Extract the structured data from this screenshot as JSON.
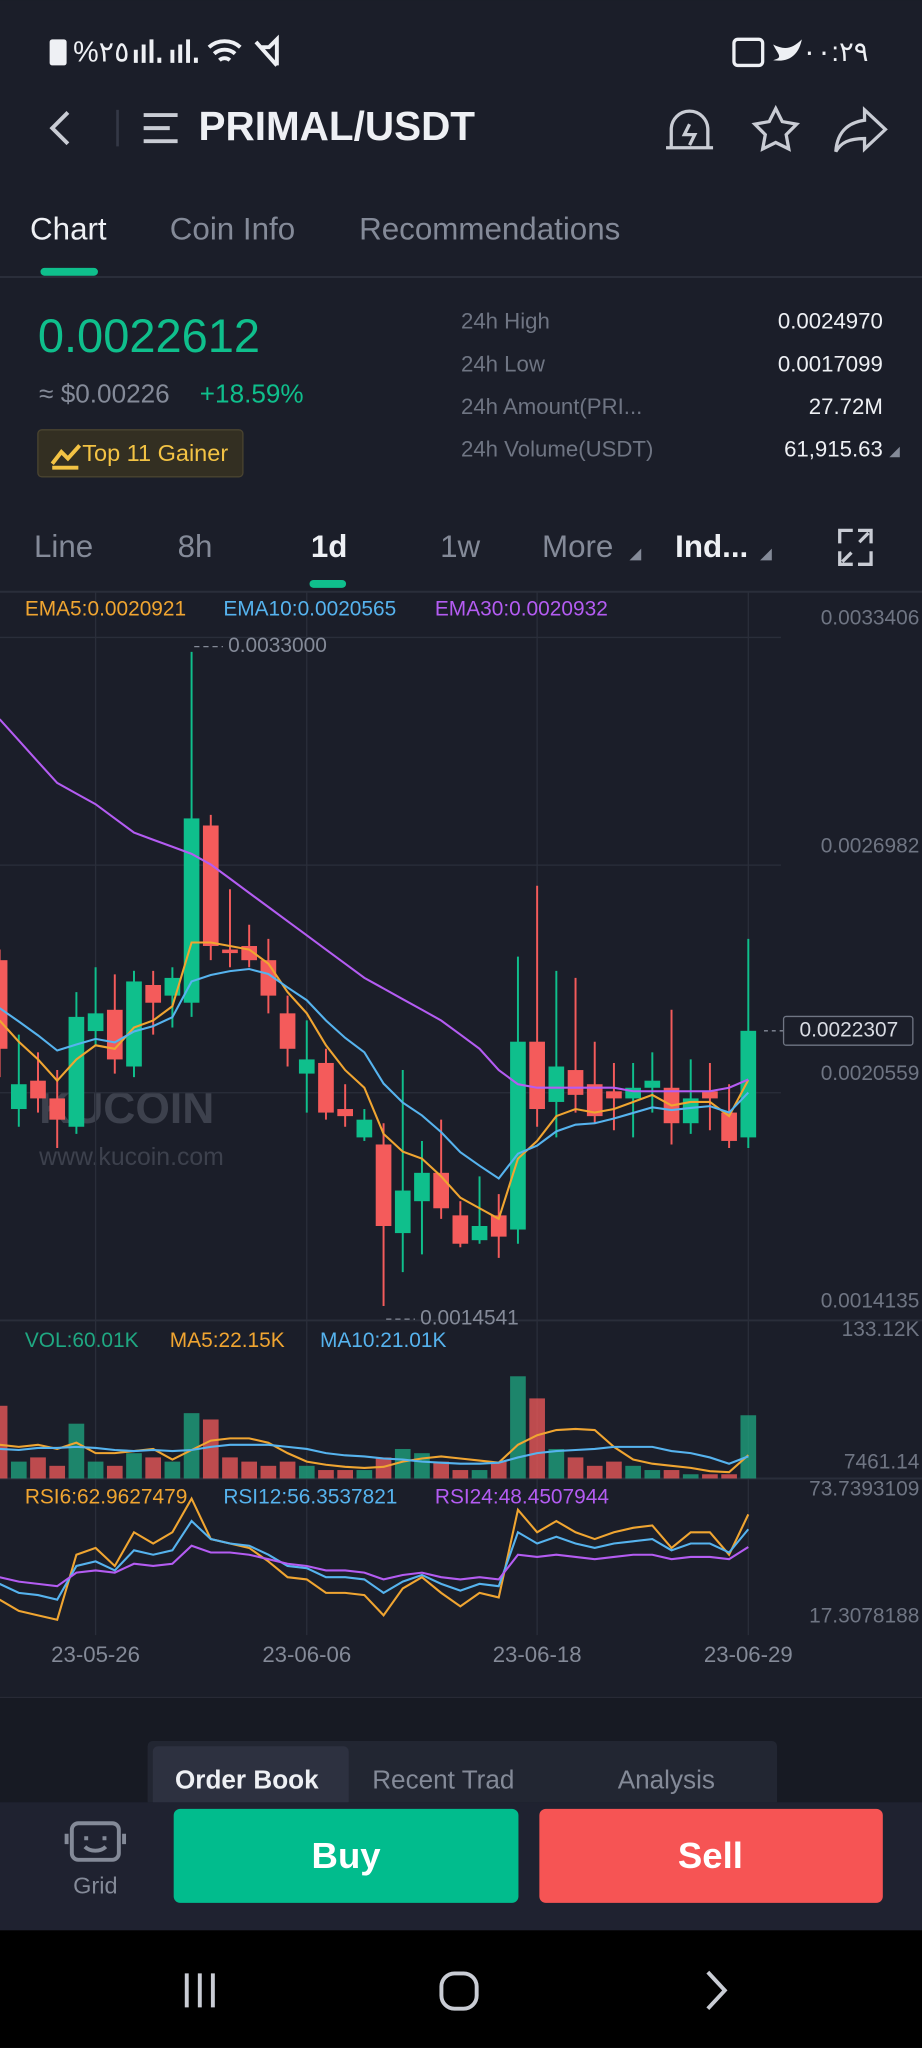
{
  "status_bar": {
    "battery": "%٢٥",
    "time": "٠٠:٢٩"
  },
  "header": {
    "title": "PRIMAL/USDT"
  },
  "tabs": [
    "Chart",
    "Coin Info",
    "Recommendations"
  ],
  "ticker": {
    "last_price": "0.0022612",
    "fiat_price": "≈ $0.00226",
    "change": "+18.59%",
    "badge": "Top 11 Gainer"
  },
  "stats": [
    {
      "label": "24h High",
      "value": "0.0024970"
    },
    {
      "label": "24h Low",
      "value": "0.0017099"
    },
    {
      "label": "24h Amount(PRI...",
      "value": "27.72M"
    },
    {
      "label": "24h Volume(USDT)",
      "value": "61,915.63"
    }
  ],
  "intervals": [
    "Line",
    "8h",
    "1d",
    "1w",
    "More",
    "Ind..."
  ],
  "watermark": {
    "brand": "KUCOIN",
    "url": "www.kucoin.com"
  },
  "chart_data": [
    {
      "type": "candlestick",
      "categories": [
        null,
        null,
        null,
        null,
        null,
        "23-05-26",
        null,
        null,
        null,
        null,
        null,
        null,
        null,
        null,
        null,
        null,
        "23-06-06",
        null,
        null,
        null,
        null,
        null,
        null,
        null,
        null,
        null,
        null,
        null,
        "23-06-18",
        null,
        null,
        null,
        null,
        null,
        null,
        null,
        null,
        null,
        null,
        "23-06-29"
      ],
      "open": [
        0.00243,
        0.00201,
        0.00209,
        0.00204,
        0.00196,
        0.00223,
        0.00229,
        0.00213,
        0.00236,
        0.00233,
        0.00231,
        0.00281,
        0.00246,
        0.00247,
        0.00243,
        0.00228,
        0.00211,
        0.00214,
        0.00201,
        0.00193,
        0.00191,
        0.00166,
        0.00175,
        0.00183,
        0.00171,
        0.00164,
        0.00171,
        0.00167,
        0.0022,
        0.00203,
        0.00212,
        0.00208,
        0.00206,
        0.00204,
        0.00207,
        0.00207,
        0.00197,
        0.00206,
        0.002,
        0.00193
      ],
      "high": [
        0.00246,
        0.00222,
        0.00217,
        0.00212,
        0.00234,
        0.00241,
        0.00239,
        0.0024,
        0.0024,
        0.00241,
        0.0033,
        0.00284,
        0.00263,
        0.00253,
        0.00249,
        0.00233,
        0.00226,
        0.00218,
        0.00208,
        0.00201,
        0.00197,
        0.00212,
        0.00192,
        0.00198,
        0.00175,
        0.00182,
        0.00177,
        0.00244,
        0.00264,
        0.0024,
        0.00238,
        0.0022,
        0.00214,
        0.00214,
        0.00217,
        0.00229,
        0.00215,
        0.00214,
        0.00208,
        0.00249
      ],
      "low": [
        0.0021,
        0.00196,
        0.002,
        0.0019,
        0.00194,
        0.00219,
        0.00211,
        0.0021,
        0.00222,
        0.00224,
        0.00227,
        0.00243,
        0.00241,
        0.00241,
        0.00228,
        0.00213,
        0.002,
        0.00198,
        0.00196,
        0.00192,
        0.0014541,
        0.00155,
        0.0016,
        0.0017,
        0.00162,
        0.00163,
        0.00159,
        0.00163,
        0.00196,
        0.00193,
        0.002,
        0.00197,
        0.00195,
        0.00193,
        0.002,
        0.00191,
        0.00194,
        0.00195,
        0.0019,
        0.0019
      ],
      "close": [
        0.00218,
        0.00208,
        0.00204,
        0.00198,
        0.00227,
        0.00228,
        0.00215,
        0.00237,
        0.00231,
        0.00238,
        0.00283,
        0.00247,
        0.00245,
        0.00243,
        0.00233,
        0.00218,
        0.00215,
        0.002,
        0.00199,
        0.00198,
        0.00168,
        0.00178,
        0.00183,
        0.00173,
        0.00163,
        0.00168,
        0.00165,
        0.0022,
        0.00201,
        0.00213,
        0.00205,
        0.00199,
        0.00204,
        0.00207,
        0.00209,
        0.00197,
        0.00204,
        0.00204,
        0.00192,
        0.0022307
      ],
      "up_color": "#0fbf8c",
      "down_color": "#f45b5b",
      "ylim": [
        0.0014135,
        0.0034696
      ],
      "yticks": [
        0.0033406,
        0.0026982,
        0.0020559,
        0.0014135
      ],
      "grid": true,
      "last_price": 0.0022307,
      "high_mark": {
        "value": 0.0033,
        "label": "0.0033000"
      },
      "low_mark": 0.0014541,
      "series": [
        {
          "name": "EMA5:0.0020921",
          "color": "#f0a531",
          "values": [
            0.00226,
            0.0022,
            0.00215,
            0.00209,
            0.00215,
            0.00219,
            0.00218,
            0.00224,
            0.00226,
            0.0023,
            0.00248,
            0.00248,
            0.00247,
            0.00246,
            0.00242,
            0.00234,
            0.00228,
            0.00219,
            0.00212,
            0.00207,
            0.00194,
            0.00189,
            0.00187,
            0.00182,
            0.00176,
            0.00173,
            0.0017,
            0.00187,
            0.00192,
            0.00199,
            0.00201,
            0.002,
            0.00201,
            0.00203,
            0.00205,
            0.00202,
            0.00203,
            0.00203,
            0.00199,
            0.0020921
          ]
        },
        {
          "name": "EMA10:0.0020565",
          "color": "#56b3ee",
          "values": [
            0.002295,
            0.002257,
            0.002218,
            0.002175,
            0.002192,
            0.002208,
            0.002198,
            0.002229,
            0.002244,
            0.002269,
            0.00237,
            0.002388,
            0.002399,
            0.002405,
            0.002391,
            0.002353,
            0.002317,
            0.00226,
            0.002211,
            0.00217,
            0.002082,
            0.002028,
            0.001992,
            0.001945,
            0.001888,
            0.00185,
            0.001814,
            0.001884,
            0.001907,
            0.001947,
            0.001966,
            0.00197,
            0.001983,
            0.001999,
            0.002015,
            0.002007,
            0.002013,
            0.002018,
            0.002,
            0.0020565
          ]
        },
        {
          "name": "EMA30:0.0020932",
          "color": "#b45cf2",
          "values": [
            0.00311,
            0.00305,
            0.00299,
            0.00293,
            0.0029,
            0.00287,
            0.00283,
            0.00279,
            0.00277,
            0.00275,
            0.00273,
            0.0027,
            0.00266,
            0.00262,
            0.00258,
            0.00254,
            0.0025,
            0.00246,
            0.00242,
            0.00238,
            0.00235,
            0.00232,
            0.00229,
            0.00226,
            0.00222,
            0.00218,
            0.00212,
            0.00208,
            0.00207,
            0.00207,
            0.00207,
            0.00207,
            0.00207,
            0.00206,
            0.00206,
            0.00206,
            0.00206,
            0.00206,
            0.00207,
            0.0020932
          ]
        }
      ]
    },
    {
      "type": "bar",
      "ylim": [
        0,
        150000
      ],
      "yticks": [
        {
          "value": 133120,
          "label": "133.12K"
        },
        7461.14
      ],
      "series": [
        {
          "name": "VOL:60.01K",
          "color": "#1fa882",
          "values": [
            69000,
            16000,
            20000,
            12000,
            52000,
            16000,
            12000,
            24000,
            20000,
            16000,
            62000,
            56000,
            20000,
            16000,
            12000,
            16000,
            12000,
            8000,
            8000,
            8000,
            20000,
            28000,
            24000,
            16000,
            8000,
            8000,
            16000,
            97000,
            76000,
            28000,
            20000,
            12000,
            16000,
            12000,
            8000,
            8000,
            4000,
            4000,
            4000,
            60010
          ]
        },
        {
          "name": "MA5:22.15K",
          "color": "#f0a531",
          "values": [
            32000,
            30000,
            32000,
            28000,
            34000,
            24000,
            24000,
            26000,
            28000,
            18000,
            27000,
            36000,
            38000,
            38000,
            34000,
            24000,
            16000,
            13000,
            11000,
            10000,
            11000,
            16000,
            19000,
            21000,
            19000,
            17000,
            15000,
            32000,
            41000,
            46000,
            47000,
            46000,
            30000,
            18000,
            14000,
            12000,
            10000,
            7000,
            6000,
            22150
          ]
        },
        {
          "name": "MA10:21.01K",
          "color": "#56b3ee",
          "values": [
            28000,
            27000,
            29000,
            29000,
            30000,
            29000,
            27000,
            26000,
            27000,
            26000,
            27000,
            30000,
            32000,
            32000,
            32000,
            30000,
            28000,
            24000,
            22000,
            21000,
            19000,
            18000,
            16000,
            15000,
            14000,
            14000,
            15000,
            20000,
            24000,
            26000,
            27000,
            28000,
            30000,
            30000,
            30000,
            26000,
            24000,
            20000,
            14000,
            21010
          ]
        }
      ]
    },
    {
      "type": "line",
      "ylim": [
        9.16,
        78.97
      ],
      "yticks": [
        73.7393109,
        17.3078188
      ],
      "series": [
        {
          "name": "RSI6:62.9627479",
          "color": "#f0a531",
          "values": [
            25,
            20,
            18,
            16,
            45,
            48,
            40,
            55,
            50,
            55,
            70,
            52,
            50,
            48,
            42,
            35,
            34,
            28,
            28,
            27,
            18,
            30,
            35,
            28,
            22,
            28,
            26,
            65,
            55,
            60,
            55,
            52,
            55,
            57,
            58,
            48,
            55,
            55,
            45,
            62.9627479
          ]
        },
        {
          "name": "RSI12:56.3537821",
          "color": "#56b3ee",
          "values": [
            32,
            28,
            27,
            25,
            40,
            42,
            38,
            47,
            45,
            47,
            60,
            52,
            50,
            49,
            45,
            40,
            39,
            35,
            35,
            34,
            28,
            33,
            36,
            32,
            29,
            32,
            31,
            55,
            50,
            53,
            50,
            48,
            50,
            51,
            52,
            47,
            50,
            50,
            46,
            56.3537821
          ]
        },
        {
          "name": "RSI24:48.4507944",
          "color": "#b45cf2",
          "values": [
            35,
            33,
            32,
            31,
            37,
            38,
            37,
            41,
            40,
            41,
            49,
            46,
            46,
            45,
            43,
            41,
            40,
            38,
            38,
            37,
            34,
            36,
            37,
            35,
            34,
            35,
            34,
            45,
            44,
            45,
            44,
            43,
            44,
            45,
            45,
            43,
            44,
            44,
            43,
            48.4507944
          ]
        }
      ]
    }
  ],
  "order_tabs": [
    "Order Book",
    "Recent Trad",
    "Analysis"
  ],
  "actions": {
    "grid": "Grid",
    "buy": "Buy",
    "sell": "Sell"
  }
}
